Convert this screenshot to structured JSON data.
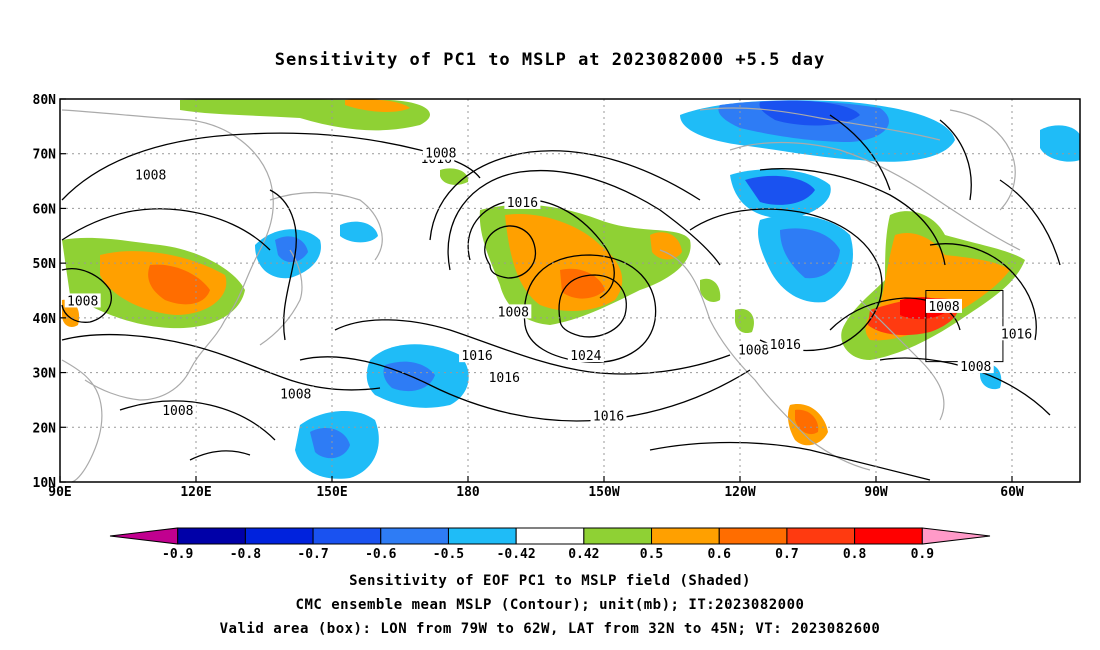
{
  "title": "Sensitivity of PC1 to MSLP at 2023082000 +5.5 day",
  "map": {
    "lon_ticks": [
      "90E",
      "120E",
      "150E",
      "180",
      "150W",
      "120W",
      "90W",
      "60W"
    ],
    "lat_ticks": [
      "80N",
      "70N",
      "60N",
      "50N",
      "40N",
      "30N",
      "20N",
      "10N"
    ]
  },
  "contour_labels": [
    {
      "text": "1016",
      "lon": 173,
      "lat": 69
    },
    {
      "text": "1008",
      "lon": 174,
      "lat": 70
    },
    {
      "text": "1008",
      "lon": 110,
      "lat": 66
    },
    {
      "text": "1016",
      "lon": -168,
      "lat": 61
    },
    {
      "text": "1008",
      "lon": 95,
      "lat": 43
    },
    {
      "text": "1008",
      "lon": -170,
      "lat": 41
    },
    {
      "text": "1024",
      "lon": -154,
      "lat": 33
    },
    {
      "text": "1016",
      "lon": -178,
      "lat": 33
    },
    {
      "text": "1016",
      "lon": -172,
      "lat": 29
    },
    {
      "text": "1008",
      "lon": 142,
      "lat": 26
    },
    {
      "text": "1008",
      "lon": 116,
      "lat": 23
    },
    {
      "text": "1016",
      "lon": -149,
      "lat": 22
    },
    {
      "text": "1008",
      "lon": -117,
      "lat": 34
    },
    {
      "text": "1016",
      "lon": -110,
      "lat": 35
    },
    {
      "text": "1008",
      "lon": -75,
      "lat": 42
    },
    {
      "text": "1016",
      "lon": -59,
      "lat": 37
    },
    {
      "text": "1008",
      "lon": -68,
      "lat": 31
    }
  ],
  "colorbar": {
    "labels": [
      "-0.9",
      "-0.8",
      "-0.7",
      "-0.6",
      "-0.5",
      "-0.42",
      "0.42",
      "0.5",
      "0.6",
      "0.7",
      "0.8",
      "0.9"
    ],
    "colors": [
      "#c1008f",
      "#0000a8",
      "#0022dd",
      "#1a52f0",
      "#2e7cf5",
      "#1fbcf7",
      "#ffffff",
      "#8fd134",
      "#ffa000",
      "#ff6d00",
      "#ff3a10",
      "#ff0000",
      "#ff9ac8"
    ]
  },
  "captions": [
    "Sensitivity of EOF PC1 to MSLP field (Shaded)",
    "CMC ensemble mean MSLP (Contour); unit(mb); IT:2023082000",
    "Valid area (box): LON from 79W to 62W, LAT from 32N to 45N; VT: 2023082600"
  ],
  "valid_box": {
    "lon_min": -79,
    "lon_max": -62,
    "lat_min": 32,
    "lat_max": 45
  }
}
